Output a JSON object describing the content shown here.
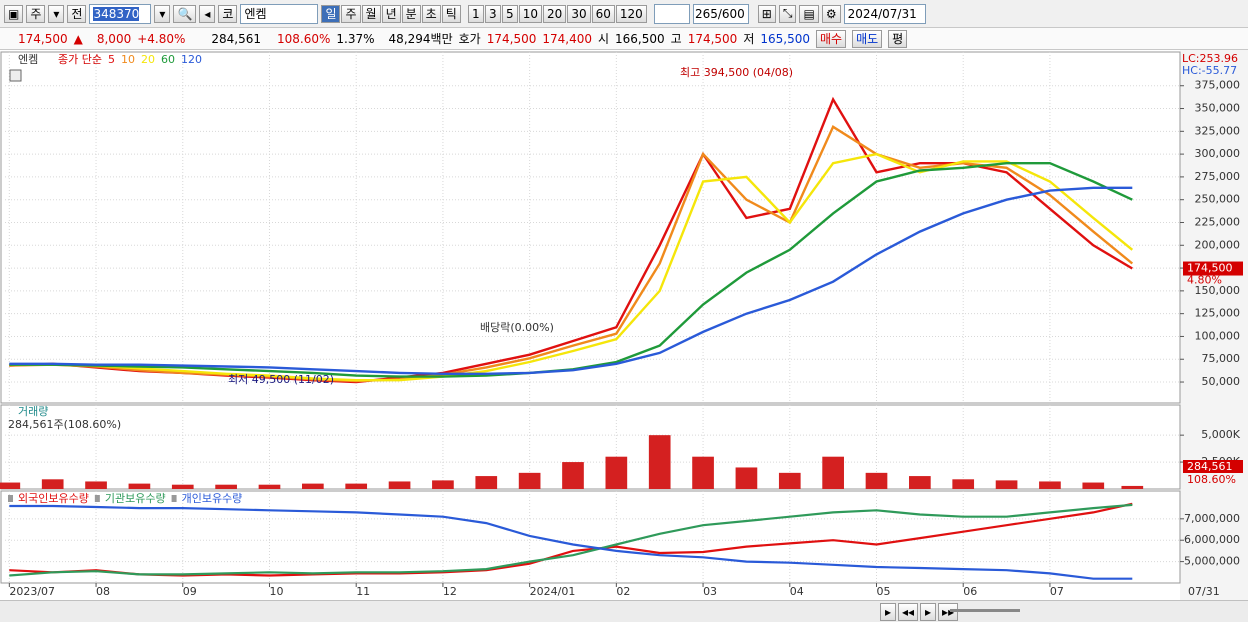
{
  "toolbar": {
    "period": "주",
    "prev": "전",
    "code": "348370",
    "market": "코",
    "name": "엔켐",
    "intervals": [
      "일",
      "주",
      "월",
      "년",
      "분",
      "초",
      "틱"
    ],
    "counts": [
      "1",
      "3",
      "5",
      "10",
      "20",
      "30",
      "60",
      "120"
    ],
    "bars_shown": "265",
    "bars_max": "/600",
    "date": "2024/07/31"
  },
  "quote_bar": {
    "price": "174,500",
    "arrow": "▲",
    "change": "8,000",
    "change_pct": "+4.80%",
    "volume": "284,561",
    "volume_ratio": "108.60%",
    "turnover": "1.37%",
    "amount": "48,294백만",
    "bid_ask_label": "호가",
    "ask": "174,500",
    "bid": "174,400",
    "open_label": "시",
    "open": "166,500",
    "high_label": "고",
    "high": "174,500",
    "low_label": "저",
    "low": "165,500",
    "buy": "매수",
    "sell": "매도",
    "avg": "평"
  },
  "chart_data": [
    {
      "type": "line",
      "title": "엔켐",
      "subtitle": "종가 단순",
      "x": [
        0,
        0.5,
        1,
        1.5,
        2,
        2.5,
        3,
        3.5,
        4,
        4.5,
        5,
        5.5,
        6,
        6.5,
        7,
        7.5,
        8,
        8.5,
        9,
        9.5,
        10,
        10.5,
        11,
        11.5,
        12,
        12.5,
        12.95
      ],
      "series": [
        {
          "name": "5",
          "color": "#e01010",
          "values": [
            68000,
            70000,
            66000,
            62000,
            60000,
            57000,
            55000,
            52000,
            50000,
            55000,
            60000,
            70000,
            80000,
            95000,
            110000,
            200000,
            300000,
            230000,
            240000,
            360000,
            280000,
            290000,
            290000,
            280000,
            240000,
            200000,
            174500
          ]
        },
        {
          "name": "10",
          "color": "#f08a1c",
          "values": [
            68000,
            69000,
            67000,
            63000,
            60000,
            58000,
            56000,
            53000,
            51000,
            53000,
            58000,
            66000,
            76000,
            90000,
            103000,
            180000,
            300000,
            250000,
            225000,
            330000,
            300000,
            285000,
            290000,
            285000,
            255000,
            215000,
            180000
          ]
        },
        {
          "name": "20",
          "color": "#f5e60a",
          "values": [
            69000,
            69000,
            68000,
            65000,
            62000,
            59000,
            57000,
            54000,
            52000,
            52000,
            56000,
            62000,
            72000,
            84000,
            97000,
            150000,
            270000,
            275000,
            225000,
            290000,
            300000,
            280000,
            292000,
            292000,
            270000,
            230000,
            195000
          ]
        },
        {
          "name": "60",
          "color": "#1f9a3a",
          "values": [
            69000,
            69000,
            68000,
            67000,
            66000,
            64000,
            62000,
            60000,
            57000,
            56000,
            56000,
            57000,
            60000,
            64000,
            72000,
            90000,
            135000,
            170000,
            195000,
            235000,
            270000,
            282000,
            285000,
            290000,
            290000,
            270000,
            250000
          ]
        },
        {
          "name": "120",
          "color": "#2a5ad8",
          "values": [
            70000,
            70000,
            69000,
            69000,
            68000,
            67000,
            66000,
            64000,
            62000,
            60000,
            59000,
            59000,
            60000,
            63000,
            70000,
            82000,
            105000,
            125000,
            140000,
            160000,
            190000,
            215000,
            235000,
            250000,
            260000,
            263000,
            263000
          ]
        }
      ],
      "xlim": [
        -0.05,
        13.5
      ],
      "ylim": [
        27000,
        412000
      ],
      "yticks": [
        {
          "value": 50000,
          "label": "50,000"
        },
        {
          "value": 75000,
          "label": "75,000"
        },
        {
          "value": 100000,
          "label": "100,000"
        },
        {
          "value": 125000,
          "label": "125,000"
        },
        {
          "value": 150000,
          "label": "150,000"
        },
        {
          "value": 175000,
          "label": "175,000"
        },
        {
          "value": 200000,
          "label": "200,000"
        },
        {
          "value": 225000,
          "label": "225,000"
        },
        {
          "value": 250000,
          "label": "250,000"
        },
        {
          "value": 275000,
          "label": "275,000"
        },
        {
          "value": 300000,
          "label": "300,000"
        },
        {
          "value": 325000,
          "label": "325,000"
        },
        {
          "value": 350000,
          "label": "350,000"
        },
        {
          "value": 375000,
          "label": "375,000"
        }
      ],
      "annotations": {
        "high": "최고 394,500 (04/08)",
        "low": "최저 49,500 (11/02)",
        "ex_dividend": "배당락(0.00%)"
      },
      "last_price_label": "174,500",
      "last_change_label": "4.80%",
      "lc": "LC:253.96",
      "hc": "HC:-55.77"
    },
    {
      "type": "bar",
      "title": "거래량",
      "subtitle": "284,561주(108.60%)",
      "x": [
        0,
        0.5,
        1,
        1.5,
        2,
        2.5,
        3,
        3.5,
        4,
        4.5,
        5,
        5.5,
        6,
        6.5,
        7,
        7.5,
        8,
        8.5,
        9,
        9.5,
        10,
        10.5,
        11,
        11.5,
        12,
        12.5,
        12.95
      ],
      "values": [
        600000,
        900000,
        700000,
        500000,
        400000,
        400000,
        400000,
        500000,
        500000,
        700000,
        800000,
        1200000,
        1500000,
        2500000,
        3000000,
        5000000,
        3000000,
        2000000,
        1500000,
        3000000,
        1500000,
        1200000,
        900000,
        800000,
        700000,
        600000,
        284561
      ],
      "color": "#d42020",
      "xlim": [
        -0.05,
        13.5
      ],
      "ylim": [
        0,
        7800000
      ],
      "yticks": [
        {
          "value": 2500000,
          "label": "2,500K"
        },
        {
          "value": 5000000,
          "label": "5,000K"
        }
      ],
      "last_value_label": "284,561",
      "last_ratio_label": "108.60%"
    },
    {
      "type": "line",
      "x": [
        0,
        0.5,
        1,
        1.5,
        2,
        2.5,
        3,
        3.5,
        4,
        4.5,
        5,
        5.5,
        6,
        6.5,
        7,
        7.5,
        8,
        8.5,
        9,
        9.5,
        10,
        10.5,
        11,
        11.5,
        12,
        12.5,
        12.95
      ],
      "series": [
        {
          "name": "외국인보유수량",
          "color": "#e01010",
          "values": [
            4600000,
            4500000,
            4600000,
            4400000,
            4350000,
            4400000,
            4350000,
            4400000,
            4450000,
            4450000,
            4500000,
            4600000,
            4900000,
            5500000,
            5700000,
            5400000,
            5450000,
            5700000,
            5850000,
            6000000,
            5800000,
            6100000,
            6400000,
            6700000,
            7000000,
            7300000,
            7700000
          ]
        },
        {
          "name": "기관보유수량",
          "color": "#2f9a5a",
          "values": [
            4350000,
            4500000,
            4550000,
            4400000,
            4400000,
            4450000,
            4500000,
            4450000,
            4500000,
            4500000,
            4550000,
            4650000,
            5000000,
            5300000,
            5800000,
            6300000,
            6700000,
            6900000,
            7100000,
            7300000,
            7400000,
            7200000,
            7100000,
            7100000,
            7300000,
            7500000,
            7650000
          ]
        },
        {
          "name": "개인보유수량",
          "color": "#2a5ad8",
          "values": [
            7600000,
            7600000,
            7550000,
            7500000,
            7500000,
            7450000,
            7400000,
            7350000,
            7300000,
            7200000,
            7100000,
            6800000,
            6200000,
            5800000,
            5500000,
            5300000,
            5200000,
            5000000,
            4950000,
            4850000,
            4750000,
            4700000,
            4650000,
            4600000,
            4450000,
            4200000,
            4200000
          ]
        }
      ],
      "xlim": [
        -0.05,
        13.5
      ],
      "ylim": [
        4000000,
        8300000
      ],
      "yticks": [
        {
          "value": 5000000,
          "label": "5,000,000"
        },
        {
          "value": 6000000,
          "label": "6,000,000"
        },
        {
          "value": 7000000,
          "label": "7,000,000"
        }
      ],
      "xticks": [
        {
          "value": 0,
          "label": "2023/07"
        },
        {
          "value": 1,
          "label": "08"
        },
        {
          "value": 2,
          "label": "09"
        },
        {
          "value": 3,
          "label": "10"
        },
        {
          "value": 4,
          "label": "11"
        },
        {
          "value": 5,
          "label": "12"
        },
        {
          "value": 6,
          "label": "2024/01"
        },
        {
          "value": 7,
          "label": "02"
        },
        {
          "value": 8,
          "label": "03"
        },
        {
          "value": 9,
          "label": "04"
        },
        {
          "value": 10,
          "label": "05"
        },
        {
          "value": 11,
          "label": "06"
        },
        {
          "value": 12,
          "label": "07"
        }
      ],
      "x_end_label": "07/31"
    }
  ]
}
